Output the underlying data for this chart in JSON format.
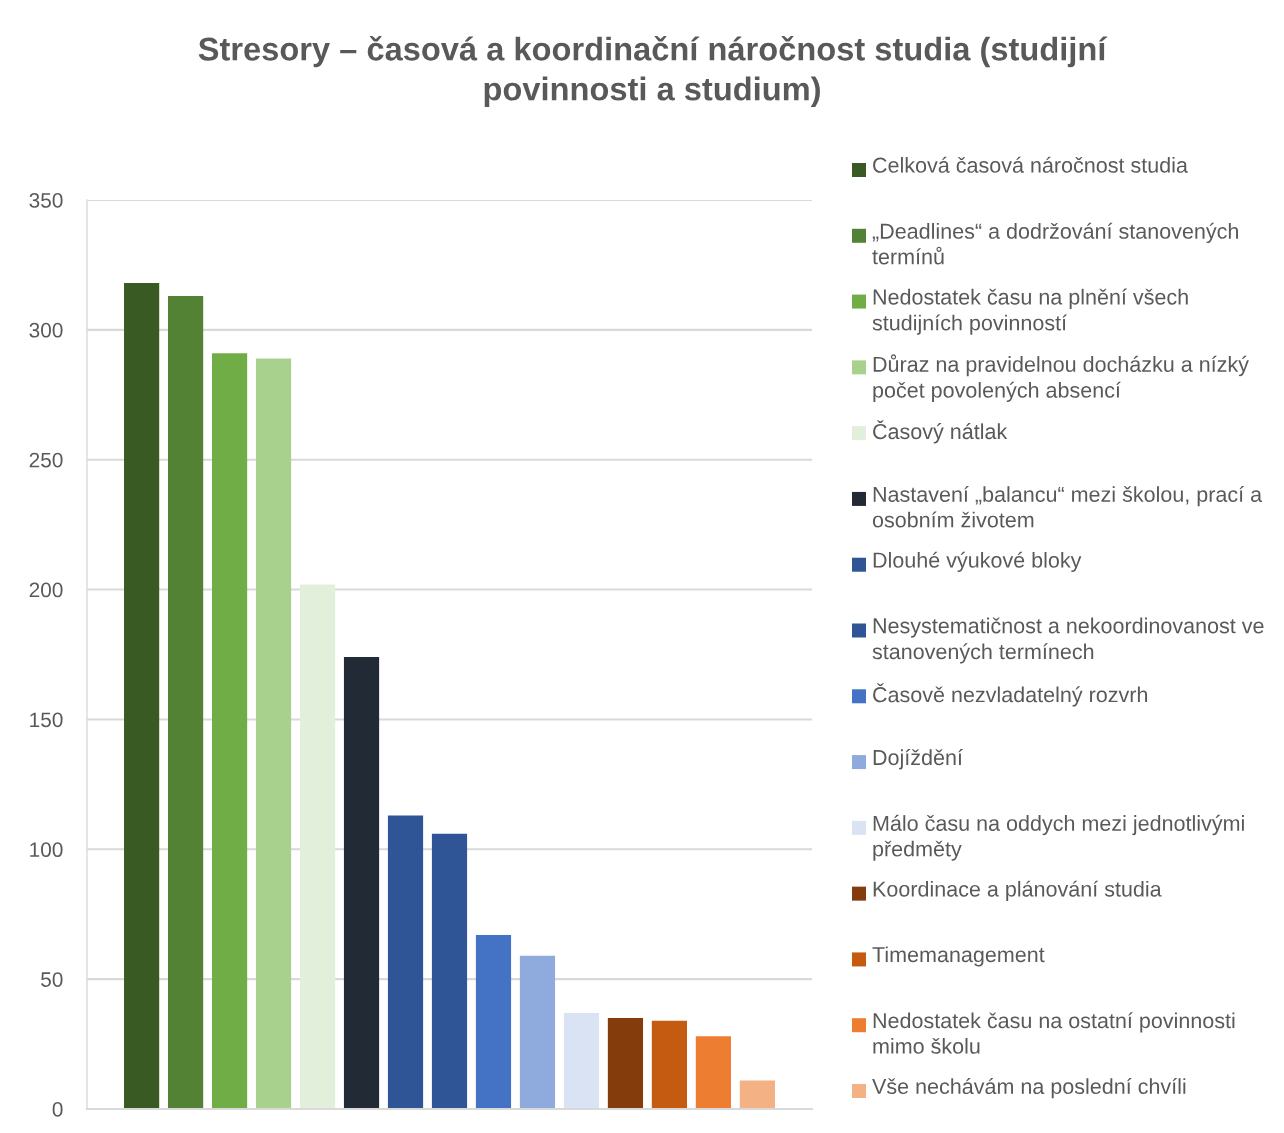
{
  "chart_data": {
    "type": "bar",
    "title": "Stresory – časová a koordinační náročnost studia (studijní povinnosti a studium)",
    "categories": [
      null
    ],
    "series": [
      {
        "name": "Celková časová náročnost studia",
        "color": "#3a5a24",
        "values": [
          318
        ]
      },
      {
        "name": "„Deadlines“ a dodržování stanovených termínů",
        "color": "#548235",
        "values": [
          313
        ]
      },
      {
        "name": "Nedostatek času na plnění všech studijních povinností",
        "color": "#70ad47",
        "values": [
          291
        ]
      },
      {
        "name": "Důraz na pravidelnou docházku a nízký počet povolených absencí",
        "color": "#a9d18e",
        "values": [
          289
        ]
      },
      {
        "name": "Časový nátlak",
        "color": "#e2efda",
        "values": [
          202
        ]
      },
      {
        "name": "Nastavení „balancu“ mezi školou, prací a osobním životem",
        "color": "#222a35",
        "values": [
          174
        ]
      },
      {
        "name": "Dlouhé výukové bloky",
        "color": "#2f5597",
        "values": [
          113
        ]
      },
      {
        "name": "Nesystematičnost a nekoordinovanost ve stanovených termínech",
        "color": "#2f5597",
        "values": [
          106
        ]
      },
      {
        "name": "Časově nezvladatelný rozvrh",
        "color": "#4472c4",
        "values": [
          67
        ]
      },
      {
        "name": "Dojíždění",
        "color": "#8faadc",
        "values": [
          59
        ]
      },
      {
        "name": "Málo času na oddych mezi jednotlivými předměty",
        "color": "#dae3f3",
        "values": [
          37
        ]
      },
      {
        "name": "Koordinace a plánování studia",
        "color": "#843c0c",
        "values": [
          35
        ]
      },
      {
        "name": "Timemanagement",
        "color": "#c55a11",
        "values": [
          34
        ]
      },
      {
        "name": "Nedostatek času na ostatní povinnosti mimo školu",
        "color": "#ed7d31",
        "values": [
          28
        ]
      },
      {
        "name": "Vše nechávám na poslední chvíli",
        "color": "#f4b183",
        "values": [
          11
        ]
      }
    ],
    "ylim": [
      0,
      350
    ],
    "yticks": [
      0,
      50,
      100,
      150,
      200,
      250,
      300,
      350
    ],
    "grid": "y",
    "legend": "right"
  }
}
